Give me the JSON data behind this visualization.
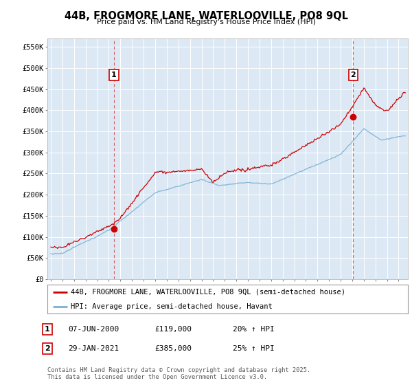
{
  "title": "44B, FROGMORE LANE, WATERLOOVILLE, PO8 9QL",
  "subtitle": "Price paid vs. HM Land Registry's House Price Index (HPI)",
  "ylabel_ticks": [
    "£0",
    "£50K",
    "£100K",
    "£150K",
    "£200K",
    "£250K",
    "£300K",
    "£350K",
    "£400K",
    "£450K",
    "£500K",
    "£550K"
  ],
  "ytick_values": [
    0,
    50000,
    100000,
    150000,
    200000,
    250000,
    300000,
    350000,
    400000,
    450000,
    500000,
    550000
  ],
  "ylim": [
    0,
    570000
  ],
  "xlim_start": 1994.7,
  "xlim_end": 2025.8,
  "red_color": "#cc0000",
  "blue_color": "#7bafd4",
  "plot_bg_color": "#dce9f5",
  "bg_color": "#ffffff",
  "grid_color": "#ffffff",
  "marker1_date": 2000.44,
  "marker1_value": 119000,
  "marker2_date": 2021.08,
  "marker2_value": 385000,
  "legend_label_red": "44B, FROGMORE LANE, WATERLOOVILLE, PO8 9QL (semi-detached house)",
  "legend_label_blue": "HPI: Average price, semi-detached house, Havant",
  "annotation1_label": "1",
  "annotation1_date": "07-JUN-2000",
  "annotation1_price": "£119,000",
  "annotation1_hpi": "20% ↑ HPI",
  "annotation2_label": "2",
  "annotation2_date": "29-JAN-2021",
  "annotation2_price": "£385,000",
  "annotation2_hpi": "25% ↑ HPI",
  "footer": "Contains HM Land Registry data © Crown copyright and database right 2025.\nThis data is licensed under the Open Government Licence v3.0."
}
